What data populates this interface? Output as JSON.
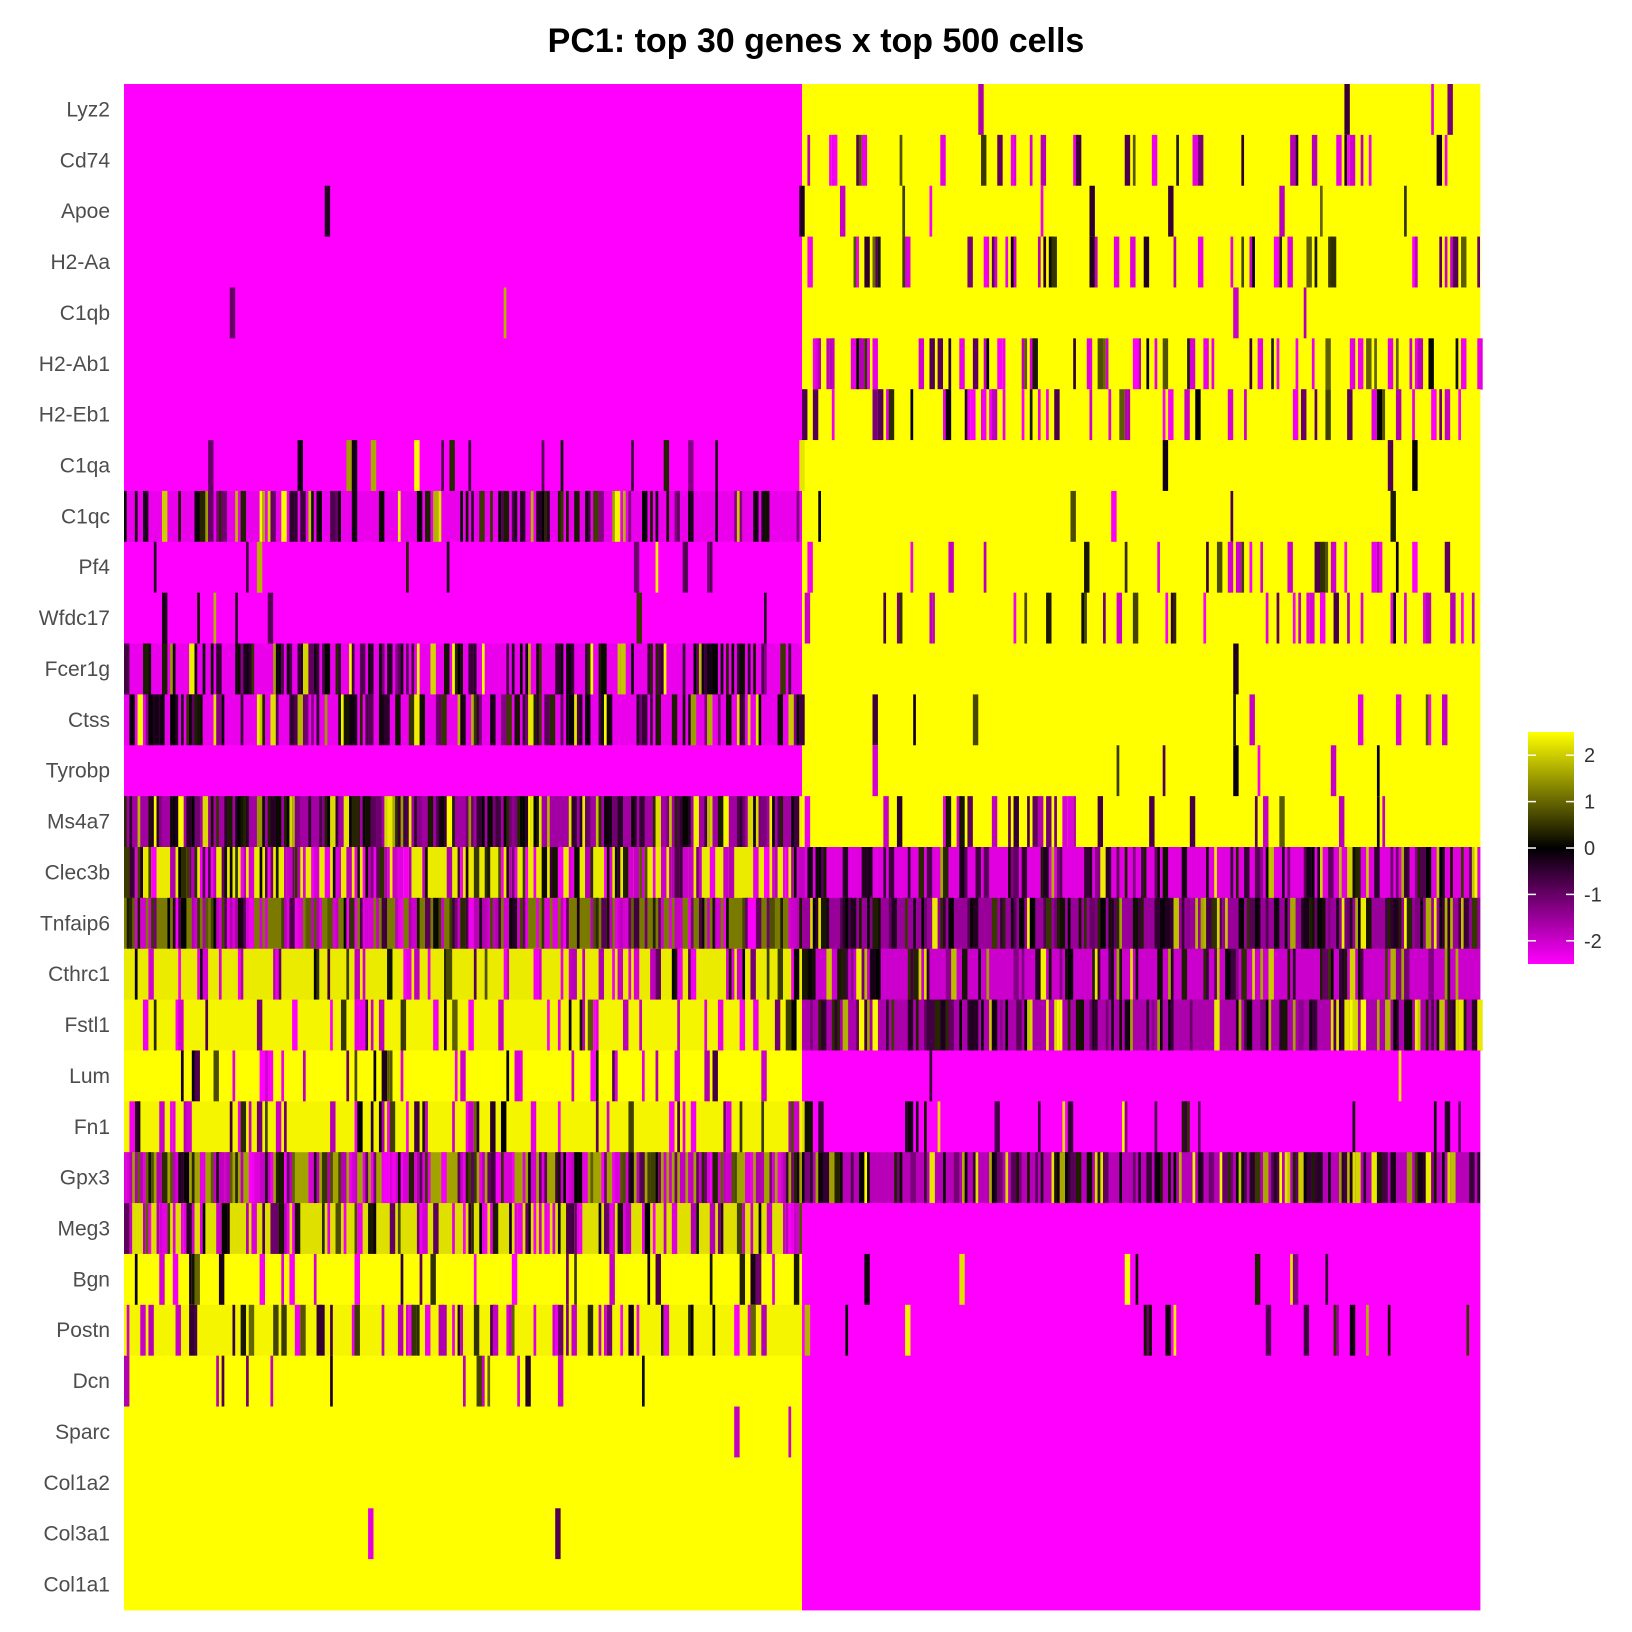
{
  "chart_data": {
    "type": "heatmap",
    "title": "PC1: top 30 genes x top 500 cells",
    "xlabel": "",
    "ylabel": "",
    "cell_count": 500,
    "cell_group_split": 250,
    "genes": [
      "Lyz2",
      "Cd74",
      "Apoe",
      "H2-Aa",
      "C1qb",
      "H2-Ab1",
      "H2-Eb1",
      "C1qa",
      "C1qc",
      "Pf4",
      "Wfdc17",
      "Fcer1g",
      "Ctss",
      "Tyrobp",
      "Ms4a7",
      "Clec3b",
      "Tnfaip6",
      "Cthrc1",
      "Fstl1",
      "Lum",
      "Fn1",
      "Gpx3",
      "Meg3",
      "Bgn",
      "Postn",
      "Dcn",
      "Sparc",
      "Col1a2",
      "Col3a1",
      "Col1a1"
    ],
    "gene_profiles": [
      {
        "gene": "Lyz2",
        "left": -2.5,
        "right": 2.5,
        "left_noise": 0.0,
        "right_noise": 0.01
      },
      {
        "gene": "Cd74",
        "left": -2.5,
        "right": 2.5,
        "left_noise": 0.0,
        "right_noise": 0.12
      },
      {
        "gene": "Apoe",
        "left": -2.5,
        "right": 2.5,
        "left_noise": 0.005,
        "right_noise": 0.03
      },
      {
        "gene": "H2-Aa",
        "left": -2.5,
        "right": 2.5,
        "left_noise": 0.0,
        "right_noise": 0.14
      },
      {
        "gene": "C1qb",
        "left": -2.5,
        "right": 2.5,
        "left_noise": 0.005,
        "right_noise": 0.01
      },
      {
        "gene": "H2-Ab1",
        "left": -2.5,
        "right": 2.5,
        "left_noise": 0.0,
        "right_noise": 0.2
      },
      {
        "gene": "H2-Eb1",
        "left": -2.5,
        "right": 2.5,
        "left_noise": 0.005,
        "right_noise": 0.18
      },
      {
        "gene": "C1qa",
        "left": -2.5,
        "right": 2.5,
        "left_noise": 0.06,
        "right_noise": 0.01
      },
      {
        "gene": "C1qc",
        "left": -2.3,
        "right": 2.5,
        "left_noise": 0.3,
        "right_noise": 0.01
      },
      {
        "gene": "Pf4",
        "left": -2.5,
        "right": 2.5,
        "left_noise": 0.02,
        "right_noise": 0.1
      },
      {
        "gene": "Wfdc17",
        "left": -2.5,
        "right": 2.5,
        "left_noise": 0.02,
        "right_noise": 0.16
      },
      {
        "gene": "Fcer1g",
        "left": -2.3,
        "right": 2.5,
        "left_noise": 0.4,
        "right_noise": 0.01
      },
      {
        "gene": "Ctss",
        "left": -2.3,
        "right": 2.5,
        "left_noise": 0.35,
        "right_noise": 0.03
      },
      {
        "gene": "Tyrobp",
        "left": -2.5,
        "right": 2.5,
        "left_noise": 0.0,
        "right_noise": 0.02
      },
      {
        "gene": "Ms4a7",
        "left": -1.6,
        "right": 2.5,
        "left_noise": 0.55,
        "right_noise": 0.12
      },
      {
        "gene": "Clec3b",
        "left": 2.3,
        "right": -2.2,
        "left_noise": 0.45,
        "right_noise": 0.3
      },
      {
        "gene": "Tnfaip6",
        "left": 1.2,
        "right": -1.5,
        "left_noise": 0.6,
        "right_noise": 0.45
      },
      {
        "gene": "Cthrc1",
        "left": 2.3,
        "right": -2.0,
        "left_noise": 0.22,
        "right_noise": 0.35
      },
      {
        "gene": "Fstl1",
        "left": 2.4,
        "right": -1.7,
        "left_noise": 0.15,
        "right_noise": 0.35
      },
      {
        "gene": "Lum",
        "left": 2.5,
        "right": -2.5,
        "left_noise": 0.12,
        "right_noise": 0.02
      },
      {
        "gene": "Fn1",
        "left": 2.4,
        "right": -2.5,
        "left_noise": 0.22,
        "right_noise": 0.12
      },
      {
        "gene": "Gpx3",
        "left": 1.6,
        "right": -1.8,
        "left_noise": 0.55,
        "right_noise": 0.4
      },
      {
        "gene": "Meg3",
        "left": 2.2,
        "right": -2.5,
        "left_noise": 0.35,
        "right_noise": 0.01
      },
      {
        "gene": "Bgn",
        "left": 2.5,
        "right": -2.5,
        "left_noise": 0.15,
        "right_noise": 0.04
      },
      {
        "gene": "Postn",
        "left": 2.4,
        "right": -2.5,
        "left_noise": 0.22,
        "right_noise": 0.04
      },
      {
        "gene": "Dcn",
        "left": 2.5,
        "right": -2.5,
        "left_noise": 0.04,
        "right_noise": 0.0
      },
      {
        "gene": "Sparc",
        "left": 2.5,
        "right": -2.5,
        "left_noise": 0.005,
        "right_noise": 0.0
      },
      {
        "gene": "Col1a2",
        "left": 2.5,
        "right": -2.5,
        "left_noise": 0.0,
        "right_noise": 0.0
      },
      {
        "gene": "Col3a1",
        "left": 2.5,
        "right": -2.5,
        "left_noise": 0.005,
        "right_noise": 0.0
      },
      {
        "gene": "Col1a1",
        "left": 2.5,
        "right": -2.5,
        "left_noise": 0.0,
        "right_noise": 0.0
      }
    ],
    "color_scale": {
      "min": -2.5,
      "max": 2.5,
      "stops": [
        {
          "value": -2.5,
          "color": "#ff00ff"
        },
        {
          "value": 0,
          "color": "#000000"
        },
        {
          "value": 2.5,
          "color": "#ffff00"
        }
      ]
    },
    "legend": {
      "placement": "right",
      "ticks": [
        "2",
        "1",
        "0",
        "-1",
        "-2"
      ],
      "tick_values": [
        2,
        1,
        0,
        -1,
        -2
      ]
    }
  }
}
